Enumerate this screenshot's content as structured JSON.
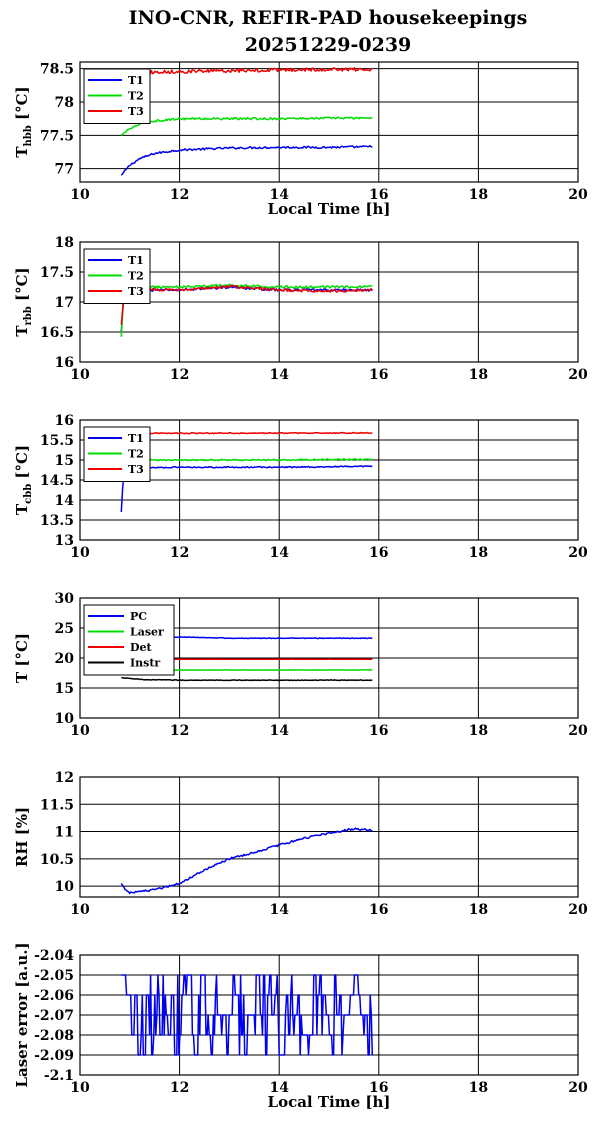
{
  "title_line1": "INO-CNR, REFIR-PAD housekeepings",
  "title_line2": "20251229-0239",
  "colors": {
    "blue": "#0000ee",
    "green": "#00dd00",
    "red": "#ee0000",
    "black": "#000000"
  },
  "chart_data": [
    {
      "type": "line",
      "ylabel_main": "T",
      "ylabel_sub": "hbb",
      "ylabel_unit": " [°C]",
      "xlabel": "Local Time [h]",
      "xlim": [
        10,
        20
      ],
      "ylim": [
        76.8,
        78.6
      ],
      "xticks": [
        "10",
        "12",
        "14",
        "16",
        "18",
        "20"
      ],
      "yticks": [
        {
          "v": 77,
          "label": "77"
        },
        {
          "v": 77.5,
          "label": "77.5"
        },
        {
          "v": 78,
          "label": "78"
        },
        {
          "v": 78.5,
          "label": "78.5"
        }
      ],
      "series": [
        {
          "name": "T1",
          "color": "#0000ee",
          "noise": 0.015,
          "points": [
            [
              10.83,
              76.9
            ],
            [
              11.0,
              77.05
            ],
            [
              11.2,
              77.15
            ],
            [
              11.5,
              77.23
            ],
            [
              12.0,
              77.28
            ],
            [
              13.0,
              77.31
            ],
            [
              14.0,
              77.32
            ],
            [
              15.0,
              77.32
            ],
            [
              15.87,
              77.33
            ]
          ]
        },
        {
          "name": "T2",
          "color": "#00dd00",
          "noise": 0.015,
          "points": [
            [
              10.83,
              77.5
            ],
            [
              11.0,
              77.6
            ],
            [
              11.3,
              77.7
            ],
            [
              12.0,
              77.75
            ],
            [
              13.0,
              77.75
            ],
            [
              14.0,
              77.75
            ],
            [
              15.0,
              77.76
            ],
            [
              15.87,
              77.76
            ]
          ]
        },
        {
          "name": "T3",
          "color": "#ee0000",
          "noise": 0.025,
          "points": [
            [
              10.83,
              78.33
            ],
            [
              11.0,
              78.42
            ],
            [
              11.5,
              78.45
            ],
            [
              13.0,
              78.47
            ],
            [
              14.0,
              78.48
            ],
            [
              15.0,
              78.49
            ],
            [
              15.87,
              78.49
            ]
          ]
        }
      ]
    },
    {
      "type": "line",
      "ylabel_main": "T",
      "ylabel_sub": "rbb",
      "ylabel_unit": " [°C]",
      "xlabel": "",
      "xlim": [
        10,
        20
      ],
      "ylim": [
        16,
        18
      ],
      "xticks": [
        "10",
        "12",
        "14",
        "16",
        "18",
        "20"
      ],
      "yticks": [
        {
          "v": 16,
          "label": "16"
        },
        {
          "v": 16.5,
          "label": "16.5"
        },
        {
          "v": 17,
          "label": "17"
        },
        {
          "v": 17.5,
          "label": "17.5"
        },
        {
          "v": 18,
          "label": "18"
        }
      ],
      "series": [
        {
          "name": "T1",
          "color": "#0000ee",
          "noise": 0.02,
          "points": [
            [
              10.83,
              16.5
            ],
            [
              10.88,
              17.1
            ],
            [
              11.0,
              17.2
            ],
            [
              12.0,
              17.2
            ],
            [
              13.0,
              17.25
            ],
            [
              14.0,
              17.2
            ],
            [
              15.0,
              17.2
            ],
            [
              15.87,
              17.2
            ]
          ]
        },
        {
          "name": "T2",
          "color": "#00dd00",
          "noise": 0.02,
          "points": [
            [
              10.83,
              16.42
            ],
            [
              10.88,
              17.15
            ],
            [
              11.0,
              17.25
            ],
            [
              12.0,
              17.25
            ],
            [
              13.0,
              17.28
            ],
            [
              14.0,
              17.25
            ],
            [
              15.0,
              17.25
            ],
            [
              15.87,
              17.25
            ]
          ]
        },
        {
          "name": "T3",
          "color": "#ee0000",
          "noise": 0.02,
          "points": [
            [
              10.83,
              16.62
            ],
            [
              10.88,
              17.1
            ],
            [
              11.0,
              17.22
            ],
            [
              12.0,
              17.2
            ],
            [
              13.0,
              17.26
            ],
            [
              14.0,
              17.2
            ],
            [
              15.0,
              17.18
            ],
            [
              15.87,
              17.2
            ]
          ]
        }
      ]
    },
    {
      "type": "line",
      "ylabel_main": "T",
      "ylabel_sub": "cbb",
      "ylabel_unit": " [°C]",
      "xlabel": "",
      "xlim": [
        10,
        20
      ],
      "ylim": [
        13,
        16
      ],
      "xticks": [
        "10",
        "12",
        "14",
        "16",
        "18",
        "20"
      ],
      "yticks": [
        {
          "v": 13,
          "label": "13"
        },
        {
          "v": 13.5,
          "label": "13.5"
        },
        {
          "v": 14,
          "label": "14"
        },
        {
          "v": 14.5,
          "label": "14.5"
        },
        {
          "v": 15,
          "label": "15"
        },
        {
          "v": 15.5,
          "label": "15.5"
        },
        {
          "v": 16,
          "label": "16"
        }
      ],
      "series": [
        {
          "name": "T1",
          "color": "#0000ee",
          "noise": 0.015,
          "points": [
            [
              10.83,
              13.7
            ],
            [
              10.87,
              14.6
            ],
            [
              10.95,
              14.8
            ],
            [
              12.0,
              14.82
            ],
            [
              14.0,
              14.82
            ],
            [
              15.87,
              14.84
            ]
          ]
        },
        {
          "name": "T2",
          "color": "#00dd00",
          "noise": 0.015,
          "points": [
            [
              10.83,
              14.9
            ],
            [
              10.95,
              15.0
            ],
            [
              12.0,
              15.0
            ],
            [
              14.0,
              15.0
            ],
            [
              15.87,
              15.02
            ]
          ]
        },
        {
          "name": "T3",
          "color": "#ee0000",
          "noise": 0.012,
          "points": [
            [
              10.83,
              15.6
            ],
            [
              10.95,
              15.66
            ],
            [
              12.0,
              15.67
            ],
            [
              14.0,
              15.67
            ],
            [
              15.87,
              15.68
            ]
          ]
        }
      ]
    },
    {
      "type": "line",
      "ylabel_main": "T [°C]",
      "ylabel_sub": "",
      "ylabel_unit": "",
      "xlabel": "",
      "xlim": [
        10,
        20
      ],
      "ylim": [
        10,
        30
      ],
      "xticks": [
        "10",
        "12",
        "14",
        "16",
        "18",
        "20"
      ],
      "yticks": [
        {
          "v": 10,
          "label": "10"
        },
        {
          "v": 15,
          "label": "15"
        },
        {
          "v": 20,
          "label": "20"
        },
        {
          "v": 25,
          "label": "25"
        },
        {
          "v": 30,
          "label": "30"
        }
      ],
      "series": [
        {
          "name": "PC",
          "color": "#0000ee",
          "noise": 0.05,
          "points": [
            [
              10.83,
              22.8
            ],
            [
              11.0,
              23.3
            ],
            [
              12.0,
              23.5
            ],
            [
              13.0,
              23.3
            ],
            [
              14.0,
              23.3
            ],
            [
              15.87,
              23.3
            ]
          ]
        },
        {
          "name": "Laser",
          "color": "#00dd00",
          "noise": 0.02,
          "points": [
            [
              10.83,
              18.0
            ],
            [
              15.87,
              18.0
            ]
          ]
        },
        {
          "name": "Det",
          "color": "#ee0000",
          "noise": 0.01,
          "points": [
            [
              10.83,
              19.8
            ],
            [
              15.87,
              19.8
            ]
          ]
        },
        {
          "name": "Instr",
          "color": "#000000",
          "noise": 0.05,
          "points": [
            [
              10.83,
              16.7
            ],
            [
              11.3,
              16.4
            ],
            [
              12.0,
              16.3
            ],
            [
              14.0,
              16.3
            ],
            [
              15.87,
              16.3
            ]
          ]
        }
      ]
    },
    {
      "type": "line",
      "ylabel_main": "RH [%]",
      "ylabel_sub": "",
      "ylabel_unit": "",
      "xlabel": "",
      "xlim": [
        10,
        20
      ],
      "ylim": [
        9.8,
        12
      ],
      "xticks": [
        "10",
        "12",
        "14",
        "16",
        "18",
        "20"
      ],
      "yticks": [
        {
          "v": 10,
          "label": "10"
        },
        {
          "v": 10.5,
          "label": "10.5"
        },
        {
          "v": 11,
          "label": "11"
        },
        {
          "v": 11.5,
          "label": "11.5"
        },
        {
          "v": 12,
          "label": "12"
        }
      ],
      "series": [
        {
          "name": "",
          "color": "#0000ee",
          "noise": 0.018,
          "points": [
            [
              10.83,
              10.05
            ],
            [
              10.9,
              9.95
            ],
            [
              11.0,
              9.88
            ],
            [
              11.5,
              9.93
            ],
            [
              12.0,
              10.05
            ],
            [
              12.5,
              10.3
            ],
            [
              13.0,
              10.5
            ],
            [
              13.5,
              10.62
            ],
            [
              14.0,
              10.75
            ],
            [
              14.5,
              10.88
            ],
            [
              15.0,
              10.97
            ],
            [
              15.5,
              11.05
            ],
            [
              15.87,
              11.02
            ]
          ]
        }
      ]
    },
    {
      "type": "line",
      "ylabel_main": "Laser error [a.u.]",
      "ylabel_sub": "",
      "ylabel_unit": "",
      "xlabel": "Local Time [h]",
      "xlim": [
        10,
        20
      ],
      "ylim": [
        -2.1,
        -2.04
      ],
      "xticks": [
        "10",
        "12",
        "14",
        "16",
        "18",
        "20"
      ],
      "yticks": [
        {
          "v": -2.1,
          "label": "-2.1"
        },
        {
          "v": -2.09,
          "label": "-2.09"
        },
        {
          "v": -2.08,
          "label": "-2.08"
        },
        {
          "v": -2.07,
          "label": "-2.07"
        },
        {
          "v": -2.06,
          "label": "-2.06"
        },
        {
          "v": -2.05,
          "label": "-2.05"
        },
        {
          "v": -2.04,
          "label": "-2.04"
        }
      ],
      "series": [
        {
          "name": "",
          "color": "#0000ee",
          "noise": 0,
          "levels": [
            -2.05,
            -2.06,
            -2.07,
            -2.08,
            -2.09
          ],
          "range": [
            10.83,
            15.87
          ]
        }
      ]
    }
  ]
}
